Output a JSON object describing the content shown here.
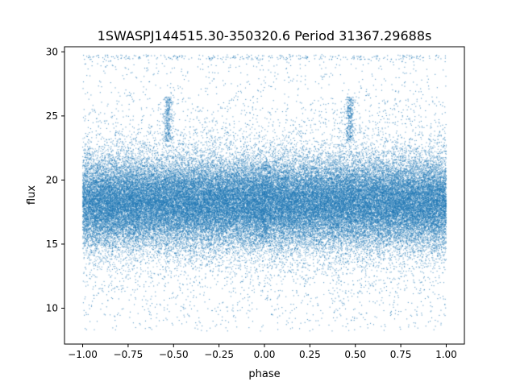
{
  "chart_data": {
    "type": "scatter",
    "title": "1SWASPJ144515.30-350320.6 Period 31367.29688s",
    "xlabel": "phase",
    "ylabel": "flux",
    "xlim": [
      -1.1,
      1.1
    ],
    "ylim": [
      7.2,
      30.4
    ],
    "xticks": [
      -1.0,
      -0.75,
      -0.5,
      -0.25,
      0.0,
      0.25,
      0.5,
      0.75,
      1.0
    ],
    "xtick_labels": [
      "−1.00",
      "−0.75",
      "−0.50",
      "−0.25",
      "0.00",
      "0.25",
      "0.50",
      "0.75",
      "1.00"
    ],
    "yticks": [
      10,
      15,
      20,
      25,
      30
    ],
    "ytick_labels": [
      "10",
      "15",
      "20",
      "25",
      "30"
    ],
    "grid": false,
    "marker_color": "#1f77b4",
    "x_range": [
      -1.0,
      1.0
    ],
    "flux_band": {
      "center": 18.2,
      "dense_range": [
        14.5,
        23.0
      ],
      "scatter_range": [
        8.2,
        29.8
      ]
    },
    "features": [
      {
        "phase": -0.53,
        "flux_range": [
          23.0,
          26.5
        ]
      },
      {
        "phase": 0.47,
        "flux_range": [
          23.0,
          26.5
        ]
      },
      {
        "phase": 0.0,
        "flux_range": [
          15.0,
          21.5
        ]
      }
    ]
  }
}
